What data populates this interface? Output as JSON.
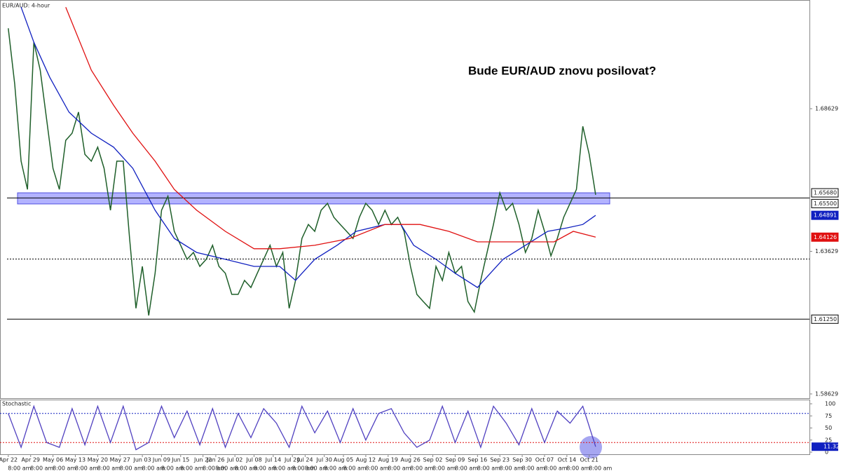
{
  "chart_data": [
    {
      "type": "line",
      "label": "EUR/AUD: 4-hour",
      "title": "Bude EUR/AUD znovu posilovat?",
      "xlim": [
        -2.6,
        251
      ],
      "ylim": [
        1.5848,
        1.7244
      ],
      "yticks": [
        1.58629,
        1.63629,
        1.68629
      ],
      "xticks": [
        {
          "value": 0,
          "label": "Apr 22"
        },
        {
          "value": 7,
          "label": "Apr 29"
        },
        {
          "value": 14,
          "label": "May 06"
        },
        {
          "value": 21,
          "label": "May 13"
        },
        {
          "value": 28,
          "label": "May 20"
        },
        {
          "value": 35,
          "label": "May 27"
        },
        {
          "value": 42,
          "label": "Jun 03"
        },
        {
          "value": 48,
          "label": "Jun 09"
        },
        {
          "value": 54,
          "label": "Jun 15"
        },
        {
          "value": 61,
          "label": "Jun 22"
        },
        {
          "value": 65,
          "label": "Jun 26"
        },
        {
          "value": 71,
          "label": "Jul 02"
        },
        {
          "value": 77,
          "label": "Jul 08"
        },
        {
          "value": 83,
          "label": "Jul 14"
        },
        {
          "value": 89,
          "label": "Jul 20"
        },
        {
          "value": 93,
          "label": "Jul 24"
        },
        {
          "value": 99,
          "label": "Jul 30"
        },
        {
          "value": 105,
          "label": "Aug 05"
        },
        {
          "value": 112,
          "label": "Aug 12"
        },
        {
          "value": 119,
          "label": "Aug 19"
        },
        {
          "value": 126,
          "label": "Aug 26"
        },
        {
          "value": 133,
          "label": "Sep 02"
        },
        {
          "value": 140,
          "label": "Sep 09"
        },
        {
          "value": 147,
          "label": "Sep 16"
        },
        {
          "value": 154,
          "label": "Sep 23"
        },
        {
          "value": 161,
          "label": "Sep 30"
        },
        {
          "value": 168,
          "label": "Oct 07"
        },
        {
          "value": 175,
          "label": "Oct 14"
        },
        {
          "value": 182,
          "label": "Oct 21"
        }
      ],
      "time_label": "8:00 am",
      "series": [
        {
          "color": "#1f5f2a",
          "x": [
            0,
            2,
            4,
            6,
            8,
            10,
            12,
            14,
            16,
            18,
            20,
            22,
            24,
            26,
            28,
            30,
            32,
            34,
            36,
            38,
            40,
            42,
            44,
            46,
            48,
            50,
            52,
            54,
            56,
            58,
            60,
            62,
            64,
            66,
            68,
            70,
            72,
            74,
            76,
            78,
            80,
            82,
            84,
            86,
            88,
            90,
            92,
            94,
            96,
            98,
            100,
            102,
            104,
            106,
            108,
            110,
            112,
            114,
            116,
            118,
            120,
            122,
            124,
            126,
            128,
            130,
            132,
            134,
            136,
            138,
            140,
            142,
            144,
            146,
            148,
            150,
            152,
            154,
            156,
            158,
            160,
            162,
            164,
            166,
            168,
            170,
            172,
            174,
            176,
            178,
            180,
            182,
            184
          ],
          "values": [
            1.7145,
            1.6949,
            1.6679,
            1.658,
            1.7096,
            1.6998,
            1.6826,
            1.6654,
            1.658,
            1.6752,
            1.6777,
            1.6851,
            1.6703,
            1.6679,
            1.6728,
            1.6654,
            1.6507,
            1.6679,
            1.6679,
            1.6408,
            1.6163,
            1.631,
            1.6138,
            1.6286,
            1.6507,
            1.6556,
            1.6433,
            1.6384,
            1.6335,
            1.6359,
            1.631,
            1.6335,
            1.6384,
            1.631,
            1.6286,
            1.6212,
            1.6212,
            1.6261,
            1.6236,
            1.6286,
            1.6335,
            1.6384,
            1.631,
            1.6359,
            1.6163,
            1.6261,
            1.6408,
            1.6457,
            1.6433,
            1.6507,
            1.6531,
            1.6482,
            1.6457,
            1.6433,
            1.6408,
            1.6482,
            1.6531,
            1.6507,
            1.6457,
            1.6507,
            1.6457,
            1.6482,
            1.6433,
            1.631,
            1.6212,
            1.6187,
            1.6163,
            1.631,
            1.6261,
            1.6359,
            1.6286,
            1.631,
            1.6187,
            1.615,
            1.6261,
            1.6359,
            1.6457,
            1.6568,
            1.6507,
            1.6531,
            1.6457,
            1.6359,
            1.6408,
            1.6507,
            1.6433,
            1.6347,
            1.6408,
            1.6482,
            1.6531,
            1.658,
            1.6801,
            1.6703,
            1.6561
          ]
        },
        {
          "color": "#1020c0",
          "x": [
            4,
            8,
            13,
            19,
            26,
            33,
            39,
            46,
            52,
            59,
            68,
            77,
            85,
            90,
            96,
            103,
            109,
            118,
            123,
            127,
            134,
            140,
            147,
            151,
            155,
            162,
            169,
            175,
            180,
            184
          ],
          "values": [
            1.7219,
            1.7096,
            1.6973,
            1.6851,
            1.6777,
            1.6728,
            1.6654,
            1.6507,
            1.6408,
            1.6359,
            1.6335,
            1.631,
            1.631,
            1.6261,
            1.6335,
            1.6384,
            1.6433,
            1.6457,
            1.6457,
            1.6384,
            1.6335,
            1.6286,
            1.6236,
            1.6286,
            1.6335,
            1.6384,
            1.6433,
            1.6445,
            1.6457,
            1.64891
          ]
        },
        {
          "color": "#e01010",
          "x": [
            18,
            26,
            33,
            39,
            46,
            52,
            59,
            68,
            77,
            85,
            96,
            107,
            118,
            129,
            138,
            147,
            155,
            164,
            171,
            177,
            184
          ],
          "values": [
            1.7219,
            1.6998,
            1.6875,
            1.6777,
            1.6679,
            1.658,
            1.6507,
            1.6433,
            1.6372,
            1.6372,
            1.6384,
            1.6408,
            1.6457,
            1.6457,
            1.6433,
            1.6396,
            1.6396,
            1.6396,
            1.6396,
            1.6433,
            1.64126
          ]
        }
      ],
      "zone": [
        1.6529,
        1.6568
      ],
      "levels": [
        {
          "value": 1.655,
          "style": "solid"
        },
        {
          "value": 1.6336,
          "style": "dotted"
        },
        {
          "value": 1.6125,
          "style": "solid"
        }
      ],
      "price_tags": [
        {
          "value": 1.6568,
          "label": "1.65680",
          "color": "#000"
        },
        {
          "value": 1.655,
          "label": "1.65500",
          "color": "#000"
        },
        {
          "value": 1.64891,
          "label": "1.64891",
          "color": "#1020c0"
        },
        {
          "value": 1.64126,
          "label": "1.64126",
          "color": "#e01010"
        },
        {
          "value": 1.6125,
          "label": "1.61250",
          "color": "#000"
        }
      ]
    },
    {
      "type": "line",
      "label": "Stochastic",
      "ylim": [
        0,
        100
      ],
      "yticks": [
        0,
        25,
        50,
        75,
        100
      ],
      "levels": [
        {
          "value": 80,
          "color": "#1020c0"
        },
        {
          "value": 20,
          "color": "#e01010"
        }
      ],
      "series": [
        {
          "color": "#5040c0",
          "x": [
            0,
            4,
            8,
            12,
            16,
            20,
            24,
            28,
            32,
            36,
            40,
            44,
            48,
            52,
            56,
            60,
            64,
            68,
            72,
            76,
            80,
            84,
            88,
            92,
            96,
            100,
            104,
            108,
            112,
            116,
            120,
            124,
            128,
            132,
            136,
            140,
            144,
            148,
            152,
            156,
            160,
            164,
            168,
            172,
            176,
            180,
            184
          ],
          "values": [
            80,
            10,
            95,
            20,
            10,
            90,
            15,
            95,
            20,
            95,
            5,
            20,
            95,
            30,
            85,
            15,
            90,
            10,
            80,
            30,
            90,
            60,
            10,
            95,
            40,
            85,
            20,
            90,
            25,
            80,
            90,
            40,
            10,
            25,
            95,
            20,
            85,
            10,
            95,
            60,
            15,
            90,
            20,
            85,
            60,
            95,
            11.32
          ]
        }
      ],
      "tag": {
        "value": 11.32,
        "color": "#1020c0"
      }
    }
  ]
}
